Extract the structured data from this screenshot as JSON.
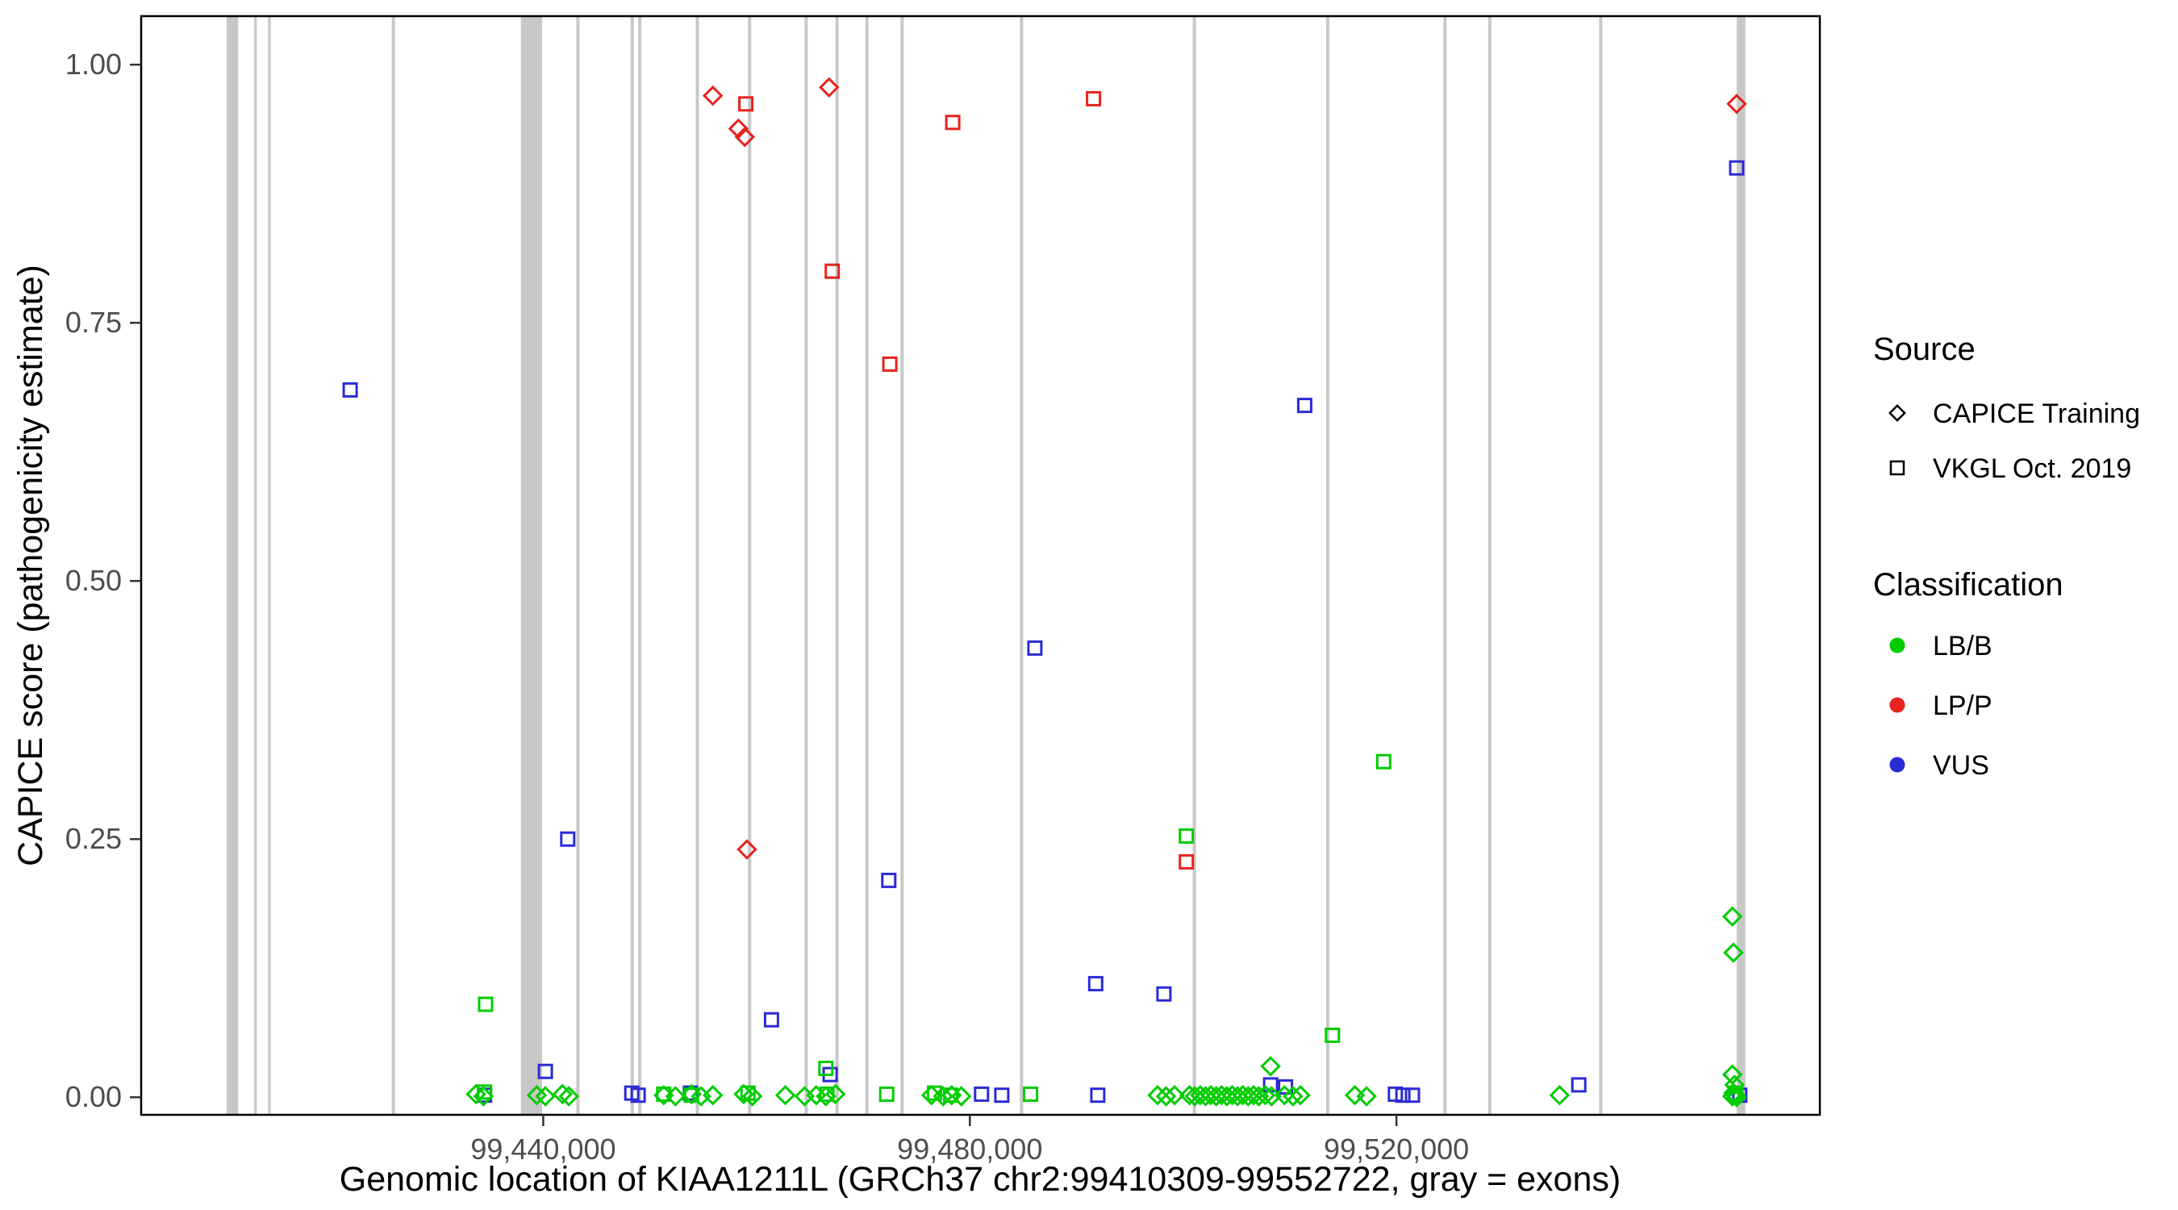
{
  "chart_data": {
    "type": "scatter",
    "xlabel": "Genomic location of KIAA1211L (GRCh37 chr2:99410309-99552722, gray = exons)",
    "ylabel": "CAPICE score (pathogenicity estimate)",
    "x_domain": [
      99402300,
      99559700
    ],
    "y_domain": [
      -0.017,
      1.047
    ],
    "grid": "off",
    "x_ticks": [
      {
        "bp": 99440000,
        "label": "99,440,000"
      },
      {
        "bp": 99480000,
        "label": "99,480,000"
      },
      {
        "bp": 99520000,
        "label": "99,520,000"
      }
    ],
    "y_ticks": [
      {
        "score": 0.0,
        "label": "0.00"
      },
      {
        "score": 0.25,
        "label": "0.25"
      },
      {
        "score": 0.5,
        "label": "0.50"
      },
      {
        "score": 0.75,
        "label": "0.75"
      },
      {
        "score": 1.0,
        "label": "1.00"
      }
    ],
    "colors": {
      "LB": "#00CC00",
      "LP": "#E6231E",
      "VUS": "#2B2BD5",
      "exon": "#C8C8C8",
      "border": "#000000"
    },
    "shape_by_source": {
      "T": "diamond",
      "V": "square"
    },
    "exons": [
      [
        99410309,
        99411400
      ],
      [
        99412900,
        99413150
      ],
      [
        99414200,
        99414450
      ],
      [
        99425800,
        99426100
      ],
      [
        99437900,
        99439900
      ],
      [
        99443100,
        99443400
      ],
      [
        99448200,
        99448500
      ],
      [
        99448900,
        99449200
      ],
      [
        99454300,
        99454600
      ],
      [
        99459200,
        99459500
      ],
      [
        99464500,
        99464800
      ],
      [
        99467400,
        99467700
      ],
      [
        99470200,
        99470500
      ],
      [
        99473500,
        99473800
      ],
      [
        99484700,
        99485000
      ],
      [
        99500900,
        99501200
      ],
      [
        99513400,
        99513700
      ],
      [
        99524400,
        99524700
      ],
      [
        99528600,
        99528900
      ],
      [
        99539000,
        99539300
      ],
      [
        99551900,
        99552722
      ]
    ],
    "points": [
      [
        "T",
        "LP",
        99455900,
        0.97
      ],
      [
        "V",
        "LP",
        99459000,
        0.962
      ],
      [
        "T",
        "LP",
        99458300,
        0.938
      ],
      [
        "T",
        "LP",
        99458900,
        0.93
      ],
      [
        "T",
        "LP",
        99466800,
        0.978
      ],
      [
        "V",
        "LP",
        99467100,
        0.8
      ],
      [
        "V",
        "LP",
        99472500,
        0.71
      ],
      [
        "V",
        "LP",
        99478400,
        0.944
      ],
      [
        "V",
        "LP",
        99491600,
        0.967
      ],
      [
        "T",
        "LP",
        99551900,
        0.962
      ],
      [
        "T",
        "LP",
        99459100,
        0.24
      ],
      [
        "V",
        "LP",
        99500300,
        0.228
      ],
      [
        "V",
        "VUS",
        99421900,
        0.685
      ],
      [
        "V",
        "VUS",
        99442300,
        0.25
      ],
      [
        "V",
        "VUS",
        99461400,
        0.075
      ],
      [
        "V",
        "VUS",
        99472400,
        0.21
      ],
      [
        "V",
        "VUS",
        99486100,
        0.435
      ],
      [
        "V",
        "VUS",
        99491800,
        0.11
      ],
      [
        "V",
        "VUS",
        99498200,
        0.1
      ],
      [
        "V",
        "VUS",
        99511400,
        0.67
      ],
      [
        "V",
        "VUS",
        99551900,
        0.9
      ],
      [
        "V",
        "VUS",
        99440200,
        0.025
      ],
      [
        "V",
        "VUS",
        99466900,
        0.022
      ],
      [
        "V",
        "VUS",
        99448300,
        0.004
      ],
      [
        "V",
        "VUS",
        99448900,
        0.002
      ],
      [
        "V",
        "VUS",
        99453800,
        0.004
      ],
      [
        "V",
        "VUS",
        99481100,
        0.003
      ],
      [
        "V",
        "VUS",
        99483000,
        0.002
      ],
      [
        "V",
        "VUS",
        99492000,
        0.002
      ],
      [
        "V",
        "VUS",
        99508200,
        0.012
      ],
      [
        "V",
        "VUS",
        99509600,
        0.01
      ],
      [
        "V",
        "VUS",
        99519900,
        0.003
      ],
      [
        "V",
        "VUS",
        99520600,
        0.002
      ],
      [
        "V",
        "VUS",
        99521500,
        0.002
      ],
      [
        "V",
        "VUS",
        99537100,
        0.012
      ],
      [
        "V",
        "VUS",
        99552200,
        0.002
      ],
      [
        "V",
        "VUS",
        99434500,
        0.002
      ],
      [
        "V",
        "LB",
        99434600,
        0.09
      ],
      [
        "V",
        "LB",
        99434500,
        0.005
      ],
      [
        "V",
        "LB",
        99451300,
        0.003
      ],
      [
        "V",
        "LB",
        99453900,
        0.002
      ],
      [
        "V",
        "LB",
        99459200,
        0.004
      ],
      [
        "V",
        "LB",
        99466500,
        0.028
      ],
      [
        "V",
        "LB",
        99466600,
        0.003
      ],
      [
        "V",
        "LB",
        99472200,
        0.003
      ],
      [
        "V",
        "LB",
        99476700,
        0.004
      ],
      [
        "V",
        "LB",
        99478200,
        0.002
      ],
      [
        "V",
        "LB",
        99485700,
        0.003
      ],
      [
        "V",
        "LB",
        99500300,
        0.253
      ],
      [
        "V",
        "LB",
        99514000,
        0.06
      ],
      [
        "V",
        "LB",
        99518800,
        0.325
      ],
      [
        "V",
        "LB",
        99551800,
        0.004
      ],
      [
        "T",
        "LB",
        99433700,
        0.003
      ],
      [
        "T",
        "LB",
        99434400,
        0.001
      ],
      [
        "T",
        "LB",
        99439400,
        0.002
      ],
      [
        "T",
        "LB",
        99440200,
        0.001
      ],
      [
        "T",
        "LB",
        99441800,
        0.003
      ],
      [
        "T",
        "LB",
        99442400,
        0.001
      ],
      [
        "T",
        "LB",
        99451300,
        0.002
      ],
      [
        "T",
        "LB",
        99452400,
        0.001
      ],
      [
        "T",
        "LB",
        99453900,
        0.003
      ],
      [
        "T",
        "LB",
        99454800,
        0.001
      ],
      [
        "T",
        "LB",
        99455900,
        0.002
      ],
      [
        "T",
        "LB",
        99458800,
        0.003
      ],
      [
        "T",
        "LB",
        99459600,
        0.001
      ],
      [
        "T",
        "LB",
        99462700,
        0.002
      ],
      [
        "T",
        "LB",
        99464500,
        0.001
      ],
      [
        "T",
        "LB",
        99465600,
        0.002
      ],
      [
        "T",
        "LB",
        99466500,
        0.001
      ],
      [
        "T",
        "LB",
        99467400,
        0.003
      ],
      [
        "T",
        "LB",
        99476400,
        0.002
      ],
      [
        "T",
        "LB",
        99477500,
        0.001
      ],
      [
        "T",
        "LB",
        99478300,
        0.002
      ],
      [
        "T",
        "LB",
        99479200,
        0.001
      ],
      [
        "T",
        "LB",
        99497600,
        0.002
      ],
      [
        "T",
        "LB",
        99498400,
        0.001
      ],
      [
        "T",
        "LB",
        99499200,
        0.002
      ],
      [
        "T",
        "LB",
        99500600,
        0.002
      ],
      [
        "T",
        "LB",
        99501100,
        0.001
      ],
      [
        "T",
        "LB",
        99501600,
        0.002
      ],
      [
        "T",
        "LB",
        99502100,
        0.001
      ],
      [
        "T",
        "LB",
        99502600,
        0.002
      ],
      [
        "T",
        "LB",
        99503100,
        0.001
      ],
      [
        "T",
        "LB",
        99503600,
        0.002
      ],
      [
        "T",
        "LB",
        99504100,
        0.001
      ],
      [
        "T",
        "LB",
        99504600,
        0.002
      ],
      [
        "T",
        "LB",
        99505100,
        0.001
      ],
      [
        "T",
        "LB",
        99505600,
        0.002
      ],
      [
        "T",
        "LB",
        99506100,
        0.001
      ],
      [
        "T",
        "LB",
        99506600,
        0.002
      ],
      [
        "T",
        "LB",
        99507100,
        0.001
      ],
      [
        "T",
        "LB",
        99507700,
        0.002
      ],
      [
        "T",
        "LB",
        99508200,
        0.03
      ],
      [
        "T",
        "LB",
        99508300,
        0.001
      ],
      [
        "T",
        "LB",
        99509500,
        0.002
      ],
      [
        "T",
        "LB",
        99510300,
        0.001
      ],
      [
        "T",
        "LB",
        99511000,
        0.002
      ],
      [
        "T",
        "LB",
        99516100,
        0.002
      ],
      [
        "T",
        "LB",
        99517200,
        0.001
      ],
      [
        "T",
        "LB",
        99535300,
        0.002
      ],
      [
        "T",
        "LB",
        99551500,
        0.175
      ],
      [
        "T",
        "LB",
        99551600,
        0.14
      ],
      [
        "T",
        "LB",
        99551500,
        0.022
      ],
      [
        "T",
        "LB",
        99551700,
        0.012
      ],
      [
        "T",
        "LB",
        99551600,
        0.004
      ],
      [
        "T",
        "LB",
        99551800,
        0.002
      ],
      [
        "T",
        "LB",
        99551500,
        0.001
      ],
      [
        "T",
        "LB",
        99551900,
        0.0
      ]
    ]
  },
  "legend": {
    "source_title": "Source",
    "source_items": [
      {
        "label": "CAPICE Training",
        "shape": "diamond"
      },
      {
        "label": "VKGL Oct. 2019",
        "shape": "square"
      }
    ],
    "class_title": "Classification",
    "class_items": [
      {
        "label": "LB/B",
        "color": "#00CC00"
      },
      {
        "label": "LP/P",
        "color": "#E6231E"
      },
      {
        "label": "VUS",
        "color": "#2B2BD5"
      }
    ]
  }
}
